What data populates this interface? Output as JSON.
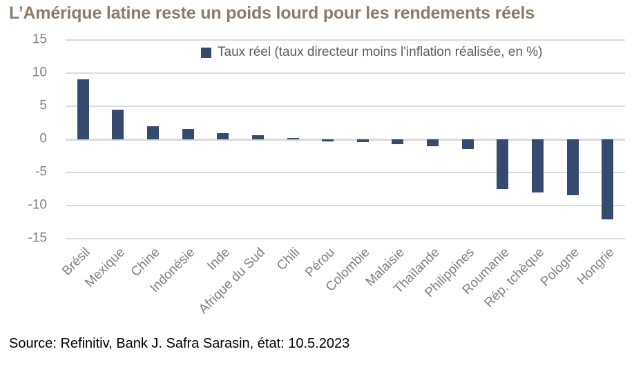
{
  "title": "L’Amérique latine reste un poids lourd pour les rendements réels",
  "source": "Source: Refinitiv, Bank J. Safra Sarasin, état: 10.5.2023",
  "legend_label": "Taux réel (taux directeur moins l'inflation réalisée, en %)",
  "colors": {
    "bar": "#36496E",
    "title": "#8C7B69",
    "axis_text": "#7F7F7F",
    "legend_text": "#575D68",
    "gridline": "#DBDBDB",
    "source_text": "#000000",
    "background": "#FFFFFF"
  },
  "chart_data": {
    "type": "bar",
    "title": "L’Amérique latine reste un poids lourd pour les rendements réels",
    "legend": "Taux réel (taux directeur moins l'inflation réalisée, en %)",
    "legend_position": "top-center",
    "unit": "%",
    "grid": true,
    "ylim": [
      -15,
      15
    ],
    "yticks": [
      15,
      10,
      5,
      0,
      -5,
      -10,
      -15
    ],
    "categories": [
      "Brésil",
      "Mexique",
      "Chine",
      "Indonésie",
      "Inde",
      "Afrique du Sud",
      "Chili",
      "Pérou",
      "Colombie",
      "Malaisie",
      "Thaïlande",
      "Philippines",
      "Roumanie",
      "Rép. tchèque",
      "Pologne",
      "Hongrie"
    ],
    "values": [
      9.1,
      4.5,
      2.0,
      1.6,
      0.9,
      0.6,
      0.2,
      -0.3,
      -0.4,
      -0.7,
      -1.0,
      -1.5,
      -7.5,
      -8.0,
      -8.4,
      -12.1
    ]
  }
}
